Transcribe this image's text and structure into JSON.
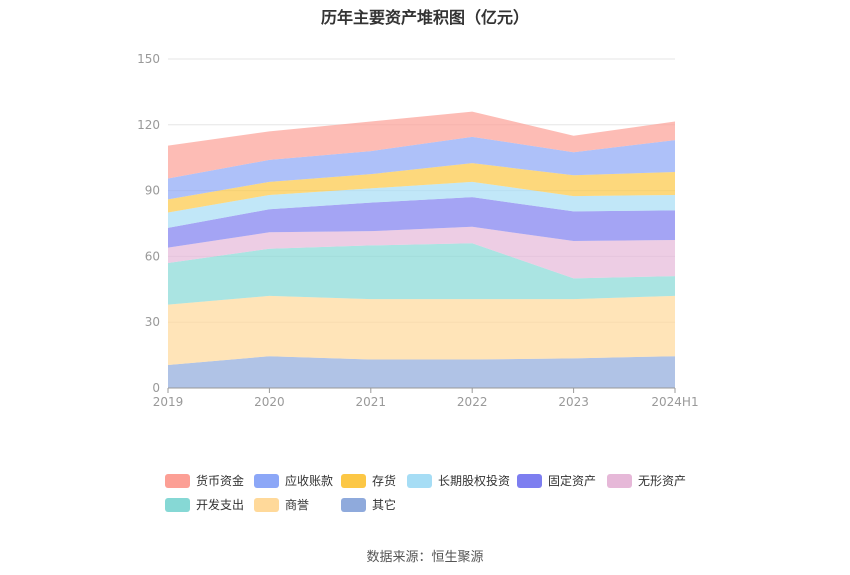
{
  "chart_data": {
    "type": "area",
    "stacked": true,
    "title": "历年主要资产堆积图（亿元）",
    "x": [
      "2019",
      "2020",
      "2021",
      "2022",
      "2023",
      "2024H1"
    ],
    "ylim": [
      0,
      150
    ],
    "yticks": [
      0,
      30,
      60,
      90,
      120,
      150
    ],
    "grid": true,
    "legend_position": "bottom",
    "series": [
      {
        "name": "其它",
        "color": "#8faadc",
        "values": [
          10.5,
          14.5,
          13,
          13,
          13.5,
          14.5
        ]
      },
      {
        "name": "商誉",
        "color": "#ffd99a",
        "values": [
          27.5,
          27.5,
          27.5,
          27.5,
          27,
          27.5
        ]
      },
      {
        "name": "开发支出",
        "color": "#86d8d5",
        "values": [
          19,
          21.5,
          24.5,
          25.5,
          9.5,
          9
        ]
      },
      {
        "name": "无形资产",
        "color": "#e6b8d8",
        "values": [
          7,
          7.5,
          6.5,
          7.5,
          17,
          16.5
        ]
      },
      {
        "name": "固定资产",
        "color": "#7d7ef0",
        "values": [
          9,
          10.5,
          13,
          13.5,
          13.5,
          13.5
        ]
      },
      {
        "name": "长期股权投资",
        "color": "#a6ddf5",
        "values": [
          7,
          6.5,
          6.5,
          7,
          7,
          7
        ]
      },
      {
        "name": "存货",
        "color": "#fcc745",
        "values": [
          6,
          6,
          6.5,
          8.5,
          9.5,
          10.5
        ]
      },
      {
        "name": "应收账款",
        "color": "#8ca7f7",
        "values": [
          9.5,
          10,
          10.5,
          12,
          10.5,
          14.5
        ]
      },
      {
        "name": "货币资金",
        "color": "#fc9f95",
        "values": [
          15,
          13,
          13.5,
          11.5,
          7.5,
          8.5
        ]
      }
    ],
    "legend_order": [
      "货币资金",
      "应收账款",
      "存货",
      "长期股权投资",
      "固定资产",
      "无形资产",
      "开发支出",
      "商誉",
      "其它"
    ]
  },
  "source": "数据来源：恒生聚源"
}
